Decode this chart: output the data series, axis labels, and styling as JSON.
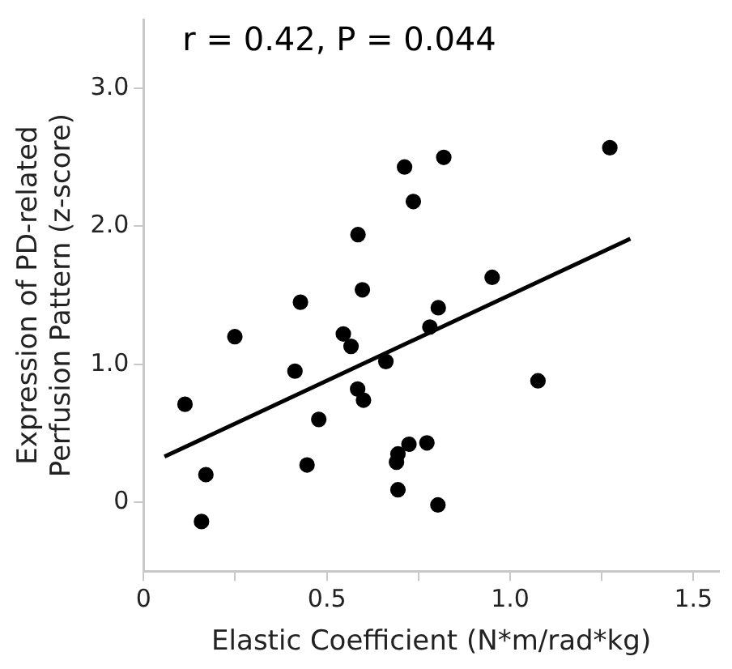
{
  "chart_data": {
    "type": "scatter",
    "xlabel": "Elastic Coefficient (N*m/rad*kg)",
    "ylabel": "Expression of PD-related\nPerfusion Pattern (z-score)",
    "annotations": [
      "r = 0.42, P = 0.044"
    ],
    "xlim": [
      0,
      1.57
    ],
    "ylim": [
      -0.5,
      3.5
    ],
    "xticks": [
      0,
      {
        "value": 0.25,
        "label": null
      },
      {
        "value": 0.5,
        "label": "0.5"
      },
      {
        "value": 0.75,
        "label": null
      },
      {
        "value": 1,
        "label": "1.0"
      },
      {
        "value": 1.25,
        "label": null
      },
      1.5
    ],
    "yticks": [
      0,
      {
        "value": 1,
        "label": "1.0"
      },
      {
        "value": 2,
        "label": "2.0"
      },
      {
        "value": 3,
        "label": "3.0"
      }
    ],
    "grid": false,
    "legend": false,
    "marker": "circle",
    "series": [
      {
        "type": "scatter",
        "color": "#000000",
        "x": [
          0.113,
          0.17,
          0.158,
          0.249,
          0.428,
          0.413,
          0.478,
          0.446,
          0.545,
          0.566,
          0.585,
          0.597,
          0.584,
          0.6,
          0.661,
          0.712,
          0.736,
          0.819,
          0.694,
          0.69,
          0.724,
          0.773,
          0.694,
          0.803,
          0.781,
          0.804,
          0.951,
          1.076,
          1.272
        ],
        "values": [
          0.71,
          0.2,
          -0.14,
          1.2,
          1.45,
          0.95,
          0.6,
          0.27,
          1.22,
          1.13,
          1.94,
          1.54,
          0.82,
          0.74,
          1.02,
          2.43,
          2.18,
          2.5,
          0.35,
          0.29,
          0.42,
          0.43,
          0.09,
          -0.02,
          1.27,
          1.41,
          1.63,
          0.88,
          2.57
        ]
      },
      {
        "type": "line",
        "color": "#000000",
        "x": [
          0.057,
          1.328
        ],
        "values": [
          0.33,
          1.91
        ],
        "marker": "none",
        "line_style": "solid"
      }
    ]
  }
}
